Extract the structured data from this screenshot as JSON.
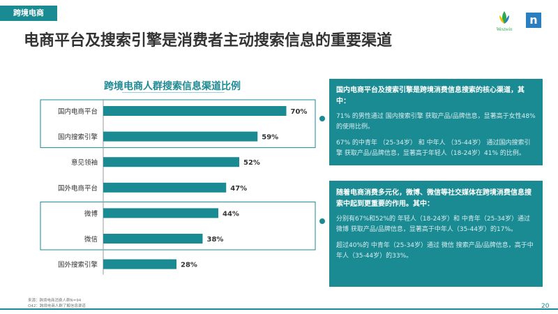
{
  "header": {
    "section_tag": "跨境电商",
    "title": "电商平台及搜索引擎是消费者主动搜索信息的重要渠道",
    "logo_text": "Westwin",
    "logo_mark": "n"
  },
  "chart_data": {
    "type": "bar",
    "orientation": "horizontal",
    "title": "跨境电商人群搜索信息渠道比例",
    "categories": [
      "国内电商平台",
      "国内搜索引擎",
      "意见领袖",
      "国外电商平台",
      "微博",
      "微信",
      "国外搜索引擎"
    ],
    "values": [
      70,
      59,
      52,
      47,
      44,
      38,
      28
    ],
    "value_labels": [
      "70%",
      "59%",
      "52%",
      "47%",
      "44%",
      "38%",
      "28%"
    ],
    "xlim": [
      0,
      100
    ],
    "bar_color": "#1a8a93",
    "highlight_groups": [
      [
        "国内电商平台",
        "国内搜索引擎"
      ],
      [
        "微博",
        "微信"
      ]
    ],
    "grid": false,
    "legend": "none"
  },
  "callouts": [
    {
      "heading": "国内电商平台及搜索引擎是跨境消费信息搜索的核心渠道，其中：",
      "paragraphs": [
        "71% 的男性通过 国内搜索引擎 获取产品/品牌信息，显著高于女性48%的使用比例。",
        "67% 的中青年 （25-34岁） 和 中年人 （35-44岁） 通过国内搜索引擎 获取产品/品牌信息，显著高于年轻人（18-24岁）41% 的比例。"
      ]
    },
    {
      "heading": "随着电商消费多元化，微博、微信等社交媒体在跨境消费信息搜索中起到更重要的作用。其中：",
      "paragraphs": [
        "分别有67%和52%的 年轻人（18-24岁）和 中青年（25-34岁）通过 微博 获取产品/品牌信息，显著高于中年人（35-44岁）的17%。",
        "超过40%的 中青年（25-34岁）通过 微信 搜索产品/品牌信息，高于中年人（35-44岁）的33%。"
      ]
    }
  ],
  "footer": {
    "source_line1": "来源：跨境电商消费人群N=94",
    "source_line2": "Q42：跨境电商人群了解信息渠道",
    "page_number": "20"
  },
  "colors": {
    "accent": "#1a8a93",
    "title_text": "#333333",
    "box_border": "#1a8a93"
  }
}
